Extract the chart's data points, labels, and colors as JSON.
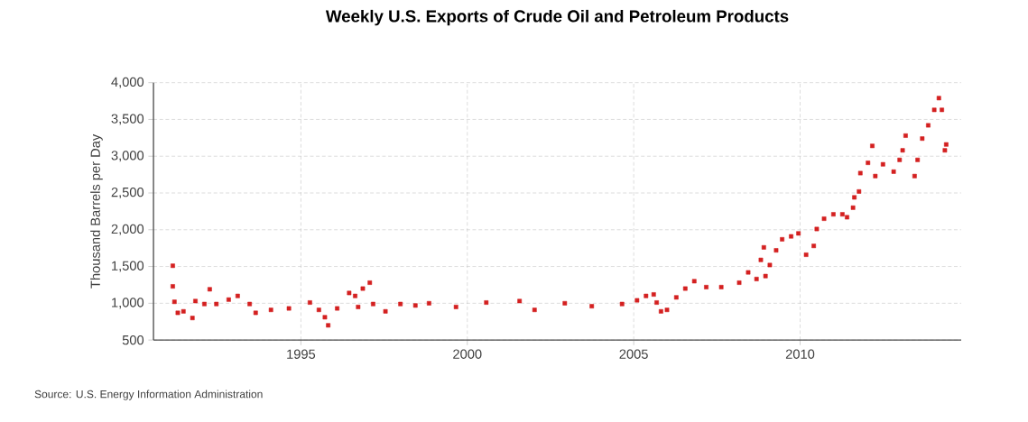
{
  "chart_data": {
    "type": "scatter",
    "title": "Weekly U.S. Exports of Crude Oil and Petroleum Products",
    "ylabel": "Thousand Barrels per Day",
    "annotations": [
      "Source: U.S. Energy Information Administration"
    ],
    "x": [
      1991.15,
      1991.15,
      1991.2,
      1991.3,
      1991.47,
      1991.74,
      1991.83,
      1992.1,
      1992.26,
      1992.46,
      1992.83,
      1993.1,
      1993.46,
      1993.64,
      1994.1,
      1994.64,
      1995.27,
      1995.54,
      1995.72,
      1995.82,
      1996.09,
      1996.45,
      1996.63,
      1996.72,
      1996.86,
      1997.07,
      1997.17,
      1997.54,
      1997.99,
      1998.44,
      1998.85,
      1999.66,
      2000.57,
      2001.57,
      2002.02,
      2002.93,
      2003.74,
      2004.65,
      2005.1,
      2005.37,
      2005.6,
      2005.69,
      2005.82,
      2006.0,
      2006.28,
      2006.55,
      2006.82,
      2007.18,
      2007.63,
      2008.17,
      2008.44,
      2008.69,
      2008.82,
      2008.91,
      2008.96,
      2009.09,
      2009.28,
      2009.46,
      2009.73,
      2009.95,
      2010.18,
      2010.41,
      2010.5,
      2010.72,
      2011.0,
      2011.27,
      2011.41,
      2011.59,
      2011.63,
      2011.77,
      2011.81,
      2012.04,
      2012.17,
      2012.26,
      2012.49,
      2012.81,
      2012.99,
      2013.08,
      2013.17,
      2013.44,
      2013.53,
      2013.67,
      2013.85,
      2014.03,
      2014.17,
      2014.26,
      2014.35,
      2014.39
    ],
    "series": [
      {
        "color": "#d42020",
        "values": [
          1510,
          1230,
          1020,
          870,
          890,
          800,
          1030,
          990,
          1190,
          990,
          1050,
          1100,
          990,
          870,
          910,
          930,
          1010,
          910,
          810,
          700,
          930,
          1140,
          1100,
          950,
          1200,
          1280,
          990,
          890,
          990,
          970,
          1000,
          950,
          1010,
          1030,
          910,
          1000,
          960,
          990,
          1040,
          1100,
          1120,
          1010,
          890,
          910,
          1080,
          1200,
          1300,
          1220,
          1220,
          1280,
          1420,
          1330,
          1590,
          1760,
          1370,
          1520,
          1720,
          1870,
          1910,
          1950,
          1660,
          1780,
          2010,
          2150,
          2210,
          2210,
          2170,
          2300,
          2440,
          2520,
          2770,
          2910,
          3140,
          2730,
          2890,
          2790,
          2950,
          3080,
          3280,
          2730,
          2950,
          3240,
          3420,
          3630,
          3790,
          3630,
          3080,
          3160
        ]
      }
    ],
    "xlim": [
      1990.57,
      2014.84
    ],
    "ylim": [
      500,
      4000
    ],
    "xticks": [
      1995,
      2000,
      2005,
      2010
    ],
    "yticks": [
      500,
      {
        "value": 1000,
        "label": "1,000"
      },
      {
        "value": 1500,
        "label": "1,500"
      },
      {
        "value": 2000,
        "label": "2,000"
      },
      {
        "value": 2500,
        "label": "2,500"
      },
      {
        "value": 3000,
        "label": "3,000"
      },
      {
        "value": 3500,
        "label": "3,500"
      },
      {
        "value": 4000,
        "label": "4,000"
      }
    ],
    "grid": true,
    "marker": "square"
  }
}
